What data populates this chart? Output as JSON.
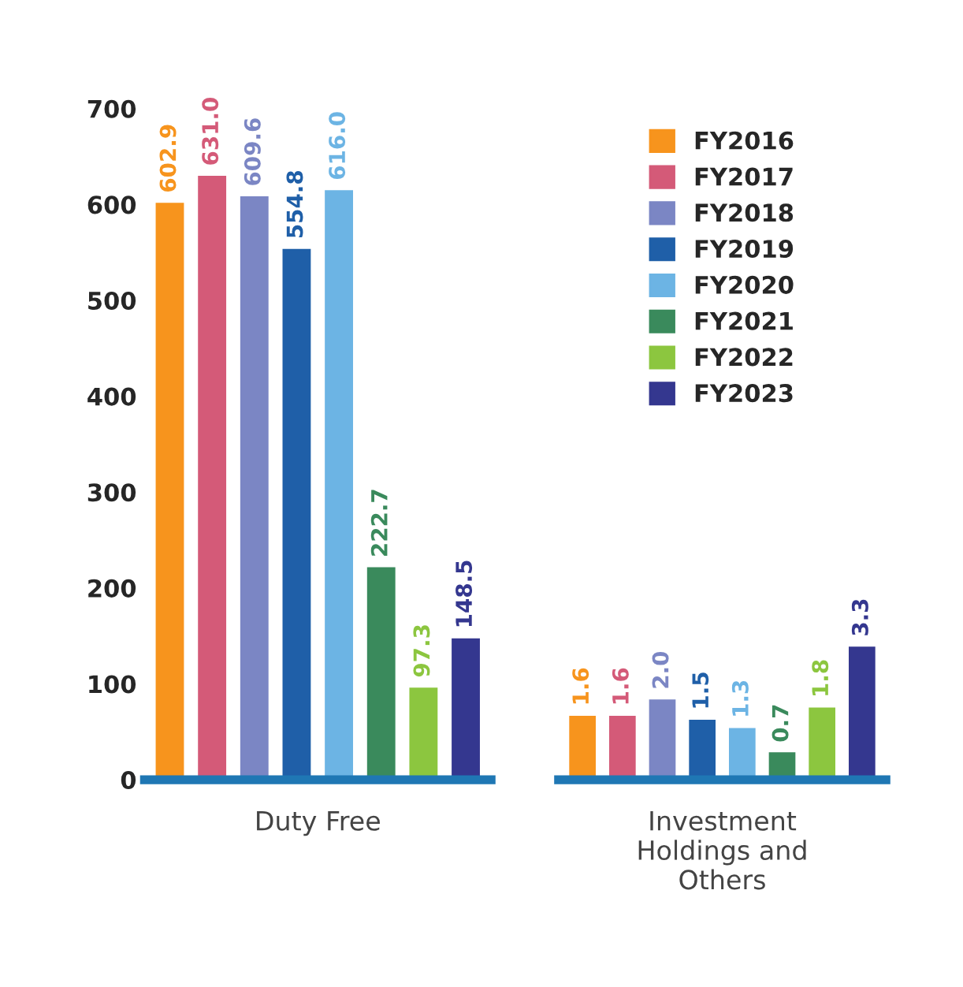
{
  "chart_data": [
    {
      "type": "bar",
      "xlabel": "Duty Free",
      "categories": [
        null,
        null,
        null,
        null,
        null,
        null,
        null,
        null
      ],
      "tick_labels": "y",
      "stacked": true,
      "ylim": [
        0,
        700
      ],
      "yticks": [
        0,
        100,
        200,
        300,
        400,
        500,
        600,
        700
      ],
      "grid": false,
      "legend": false,
      "series": [
        {
          "color": "#f7941d",
          "values": [
            602.9,
            null,
            null,
            null,
            null,
            null,
            null,
            null
          ],
          "value_labels": [
            "602.9",
            null,
            null,
            null,
            null,
            null,
            null,
            null
          ]
        },
        {
          "color": "#d45a78",
          "values": [
            null,
            631.0,
            null,
            null,
            null,
            null,
            null,
            null
          ],
          "value_labels": [
            null,
            "631.0",
            null,
            null,
            null,
            null,
            null,
            null
          ]
        },
        {
          "color": "#7b86c4",
          "values": [
            null,
            null,
            609.6,
            null,
            null,
            null,
            null,
            null
          ],
          "value_labels": [
            null,
            null,
            "609.6",
            null,
            null,
            null,
            null,
            null
          ]
        },
        {
          "color": "#1f5fa8",
          "values": [
            null,
            null,
            null,
            554.8,
            null,
            null,
            null,
            null
          ],
          "value_labels": [
            null,
            null,
            null,
            "554.8",
            null,
            null,
            null,
            null
          ]
        },
        {
          "color": "#6cb4e4",
          "values": [
            null,
            null,
            null,
            null,
            616.0,
            null,
            null,
            null
          ],
          "value_labels": [
            null,
            null,
            null,
            null,
            "616.0",
            null,
            null,
            null
          ]
        },
        {
          "color": "#3a8a5c",
          "values": [
            null,
            null,
            null,
            null,
            null,
            222.7,
            null,
            null
          ],
          "value_labels": [
            null,
            null,
            null,
            null,
            null,
            "222.7",
            null,
            null
          ]
        },
        {
          "color": "#8cc63f",
          "values": [
            null,
            null,
            null,
            null,
            null,
            null,
            97.3,
            null
          ],
          "value_labels": [
            null,
            null,
            null,
            null,
            null,
            null,
            "97.3",
            null
          ]
        },
        {
          "color": "#34378f",
          "values": [
            null,
            null,
            null,
            null,
            null,
            null,
            null,
            148.5
          ],
          "value_labels": [
            null,
            null,
            null,
            null,
            null,
            null,
            null,
            "148.5"
          ]
        }
      ]
    },
    {
      "type": "bar",
      "xlabel": "Investment\nHoldings and\nOthers",
      "categories": [
        null,
        null,
        null,
        null,
        null,
        null,
        null,
        null
      ],
      "tick_labels": false,
      "stacked": true,
      "grid": false,
      "legend": "top",
      "series": [
        {
          "name": "FY2016",
          "color": "#f7941d",
          "values": [
            1.6,
            null,
            null,
            null,
            null,
            null,
            null,
            null
          ],
          "value_labels": [
            "1.6",
            null,
            null,
            null,
            null,
            null,
            null,
            null
          ]
        },
        {
          "name": "FY2017",
          "color": "#d45a78",
          "values": [
            null,
            1.6,
            null,
            null,
            null,
            null,
            null,
            null
          ],
          "value_labels": [
            null,
            "1.6",
            null,
            null,
            null,
            null,
            null,
            null
          ]
        },
        {
          "name": "FY2018",
          "color": "#7b86c4",
          "values": [
            null,
            null,
            2.0,
            null,
            null,
            null,
            null,
            null
          ],
          "value_labels": [
            null,
            null,
            "2.0",
            null,
            null,
            null,
            null,
            null
          ]
        },
        {
          "name": "FY2019",
          "color": "#1f5fa8",
          "values": [
            null,
            null,
            null,
            1.5,
            null,
            null,
            null,
            null
          ],
          "value_labels": [
            null,
            null,
            null,
            "1.5",
            null,
            null,
            null,
            null
          ]
        },
        {
          "name": "FY2020",
          "color": "#6cb4e4",
          "values": [
            null,
            null,
            null,
            null,
            1.3,
            null,
            null,
            null
          ],
          "value_labels": [
            null,
            null,
            null,
            null,
            "1.3",
            null,
            null,
            null
          ]
        },
        {
          "name": "FY2021",
          "color": "#3a8a5c",
          "values": [
            null,
            null,
            null,
            null,
            null,
            0.7,
            null,
            null
          ],
          "value_labels": [
            null,
            null,
            null,
            null,
            null,
            "0.7",
            null,
            null
          ]
        },
        {
          "name": "FY2022",
          "color": "#8cc63f",
          "values": [
            null,
            null,
            null,
            null,
            null,
            null,
            1.8,
            null
          ],
          "value_labels": [
            null,
            null,
            null,
            null,
            null,
            null,
            "1.8",
            null
          ]
        },
        {
          "name": "FY2023",
          "color": "#34378f",
          "values": [
            null,
            null,
            null,
            null,
            null,
            null,
            null,
            3.3
          ],
          "value_labels": [
            null,
            null,
            null,
            null,
            null,
            null,
            null,
            "3.3"
          ]
        }
      ]
    }
  ]
}
